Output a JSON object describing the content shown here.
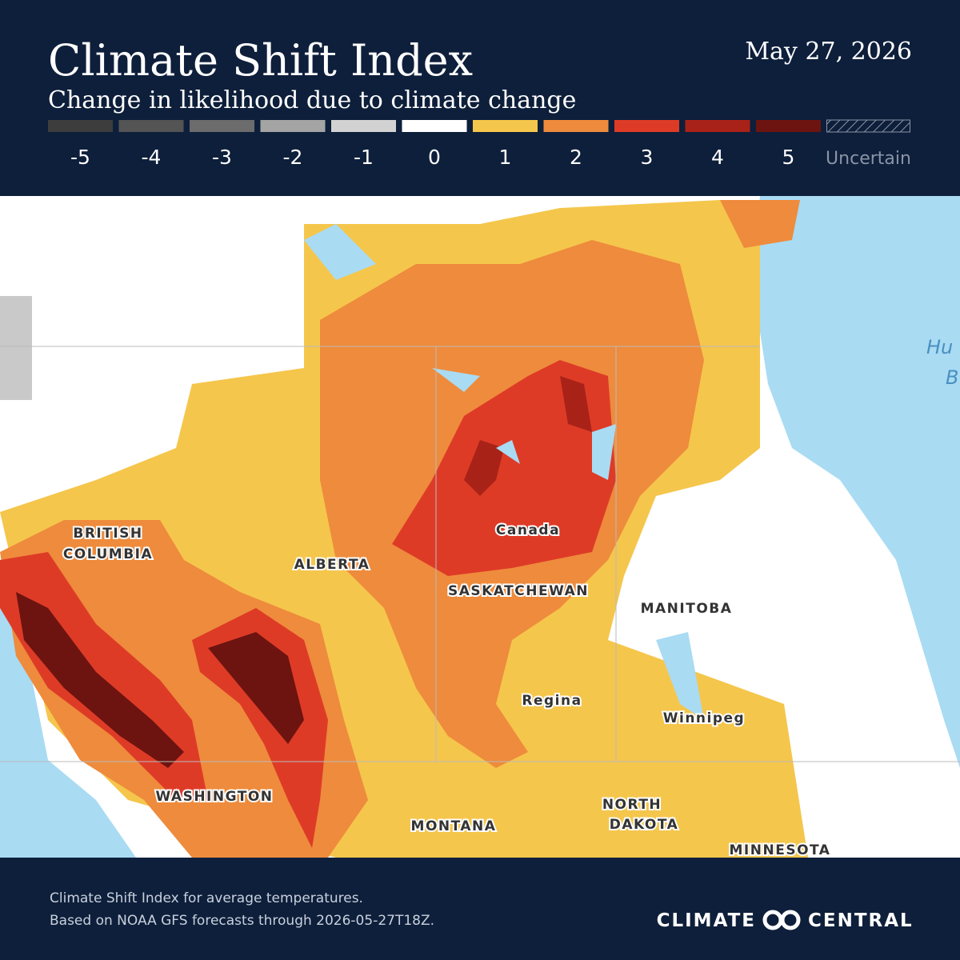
{
  "header": {
    "title": "Climate Shift Index",
    "subtitle": "Change in likelihood due to climate change",
    "date": "May 27, 2026"
  },
  "legend": [
    {
      "label": "-5",
      "color": "#3d3d3d"
    },
    {
      "label": "-4",
      "color": "#545454"
    },
    {
      "label": "-3",
      "color": "#6c6c6c"
    },
    {
      "label": "-2",
      "color": "#a4a4a4"
    },
    {
      "label": "-1",
      "color": "#d2d2d2"
    },
    {
      "label": "0",
      "color": "#ffffff"
    },
    {
      "label": "1",
      "color": "#f5c64c"
    },
    {
      "label": "2",
      "color": "#ee8b3c"
    },
    {
      "label": "3",
      "color": "#de3b27"
    },
    {
      "label": "4",
      "color": "#a92218"
    },
    {
      "label": "5",
      "color": "#6d1410"
    },
    {
      "label": "Uncertain",
      "color": "hatched"
    }
  ],
  "map": {
    "labels": [
      "BRITISH",
      "COLUMBIA",
      "ALBERTA",
      "Canada",
      "SASKATCHEWAN",
      "MANITOBA",
      "Regina",
      "Winnipeg",
      "WASHINGTON",
      "MONTANA",
      "NORTH",
      "DAKOTA",
      "MINNESOTA",
      "Hu",
      "B"
    ]
  },
  "footer": {
    "lines": [
      "Climate Shift Index for average temperatures.",
      "Based on NOAA GFS forecasts through 2026-05-27T18Z."
    ],
    "logo_left": "CLIMATE",
    "logo_right": "CENTRAL"
  }
}
